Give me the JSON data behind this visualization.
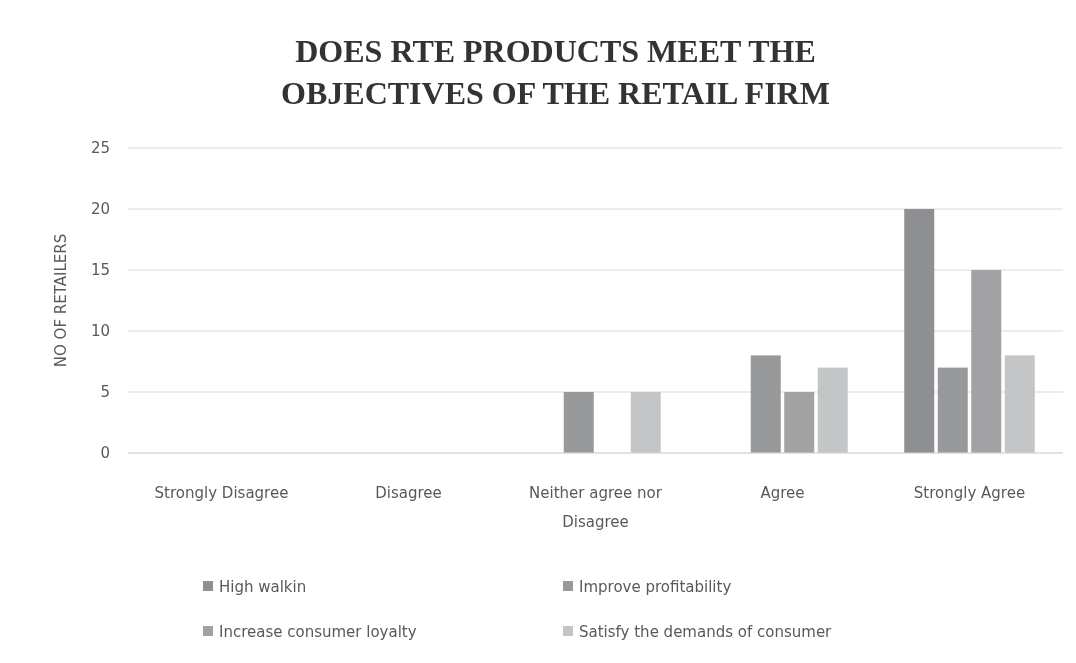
{
  "chart_data": {
    "type": "bar",
    "title": "DOES RTE PRODUCTS MEET THE OBJECTIVES OF THE RETAIL FIRM",
    "ylabel": "NO OF RETAILERS",
    "categories": [
      "Strongly Disagree",
      "Disagree",
      "Neither agree nor Disagree",
      "Agree",
      "Strongly Agree"
    ],
    "series": [
      {
        "name": "High walkin",
        "color": "#8e8f92",
        "values": [
          0,
          0,
          0,
          0,
          20
        ]
      },
      {
        "name": "Improve profitability",
        "color": "#98999b",
        "values": [
          0,
          0,
          5,
          8,
          7
        ]
      },
      {
        "name": "Increase consumer loyalty",
        "color": "#a2a2a4",
        "values": [
          0,
          0,
          0,
          5,
          15
        ]
      },
      {
        "name": "Satisfy the demands of consumer",
        "color": "#c4c5c7",
        "values": [
          0,
          0,
          5,
          7,
          8
        ]
      }
    ],
    "ylim": [
      0,
      25
    ],
    "yticks": [
      0,
      5,
      10,
      15,
      20,
      25
    ],
    "grid": "y",
    "legend": "bottom"
  }
}
